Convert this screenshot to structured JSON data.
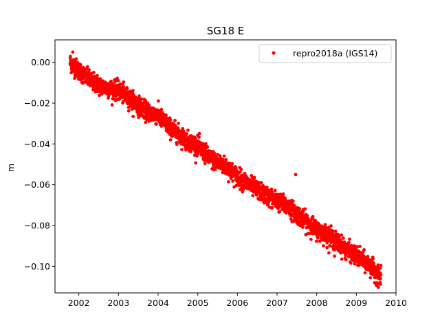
{
  "chart_data": {
    "type": "scatter",
    "title": "SG18 E",
    "xlabel": "",
    "ylabel": "m",
    "xlim": [
      2001.4,
      2010.0
    ],
    "ylim": [
      -0.113,
      0.011
    ],
    "x_ticks": [
      2002,
      2003,
      2004,
      2005,
      2006,
      2007,
      2008,
      2009,
      2010
    ],
    "x_tick_labels": [
      "2002",
      "2003",
      "2004",
      "2005",
      "2006",
      "2007",
      "2008",
      "2009",
      "2010"
    ],
    "y_ticks": [
      0.0,
      -0.02,
      -0.04,
      -0.06,
      -0.08,
      -0.1
    ],
    "y_tick_labels": [
      "0.00",
      "−0.02",
      "−0.04",
      "−0.06",
      "−0.08",
      "−0.10"
    ],
    "grid": false,
    "legend": {
      "placement": "top-right"
    },
    "series": [
      {
        "name": "repro2018a (IGS14)",
        "color": "#ff0000",
        "marker": "point",
        "trend": [
          [
            2001.78,
            0.0
          ],
          [
            2002.0,
            -0.004
          ],
          [
            2002.3,
            -0.009
          ],
          [
            2002.6,
            -0.012
          ],
          [
            2003.0,
            -0.014
          ],
          [
            2003.3,
            -0.018
          ],
          [
            2003.7,
            -0.024
          ],
          [
            2004.0,
            -0.026
          ],
          [
            2004.3,
            -0.032
          ],
          [
            2004.7,
            -0.038
          ],
          [
            2005.0,
            -0.041
          ],
          [
            2005.3,
            -0.047
          ],
          [
            2005.7,
            -0.051
          ],
          [
            2006.0,
            -0.056
          ],
          [
            2006.3,
            -0.06
          ],
          [
            2006.7,
            -0.065
          ],
          [
            2007.0,
            -0.068
          ],
          [
            2007.3,
            -0.071
          ],
          [
            2007.6,
            -0.076
          ],
          [
            2008.0,
            -0.082
          ],
          [
            2008.3,
            -0.085
          ],
          [
            2008.7,
            -0.091
          ],
          [
            2009.0,
            -0.095
          ],
          [
            2009.3,
            -0.099
          ],
          [
            2009.62,
            -0.106
          ]
        ],
        "outliers": [
          [
            2001.85,
            0.005
          ],
          [
            2007.47,
            -0.055
          ],
          [
            2008.45,
            -0.095
          ],
          [
            2009.6,
            -0.101
          ]
        ],
        "scatter_amplitude": 0.0022,
        "points_per_year": 330
      }
    ]
  }
}
